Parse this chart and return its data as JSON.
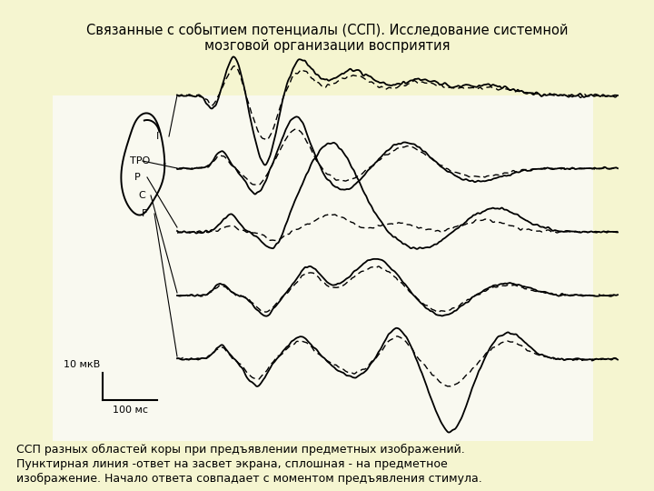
{
  "title": "Связанные с событием потенциалы (ССП). Исследование системной\nмозговой организации восприятия",
  "footer_lines": [
    "ССП разных областей коры при предъявлении предметных изображений.",
    "Пунктирная линия -ответ на засвет экрана, сплошная - на предметное",
    "изображение. Начало ответа совпадает с моментом предъявления стимула."
  ],
  "bg_color": "#f5f5d0",
  "plot_bg": "#f8f8f0",
  "scale_label_y": "10 мкВ",
  "scale_label_x": "100 мс",
  "lw_solid": 1.3,
  "lw_dashed": 1.0
}
